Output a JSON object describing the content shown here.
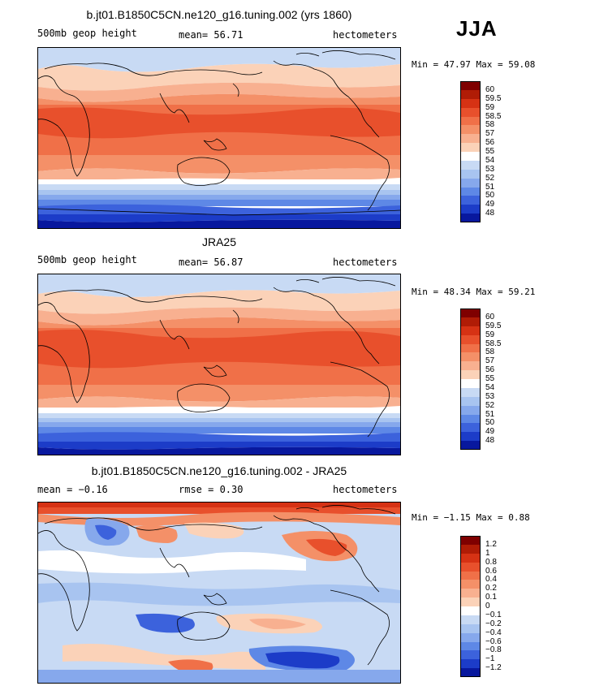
{
  "season": "JJA",
  "panels": [
    {
      "id": "model",
      "title": "b.jt01.B1850C5CN.ne120_g16.tuning.002 (yrs 1860)",
      "left_label": "500mb geop height",
      "center_label": "mean=  56.71",
      "right_label": "hectometers",
      "minmax": "Min =  47.97 Max =  59.08"
    },
    {
      "id": "obs",
      "title": "JRA25",
      "left_label": "500mb geop height",
      "center_label": "mean=  56.87",
      "right_label": "hectometers",
      "minmax": "Min =  48.34 Max =  59.21"
    },
    {
      "id": "diff",
      "title": "b.jt01.B1850C5CN.ne120_g16.tuning.002 - JRA25",
      "left_label": "mean =  −0.16",
      "center_label": "rmse =   0.30",
      "right_label": "hectometers",
      "minmax": "Min =  −1.15 Max =   0.88"
    }
  ],
  "colorbars": {
    "height": {
      "labels": [
        "60",
        "59.5",
        "59",
        "58.5",
        "58",
        "57",
        "56",
        "55",
        "54",
        "53",
        "52",
        "51",
        "50",
        "49",
        "48"
      ],
      "colors": [
        "#7f0000",
        "#b01c06",
        "#d63214",
        "#e8502c",
        "#f07048",
        "#f49068",
        "#f8b090",
        "#fbd2b8",
        "#ffffff",
        "#c8daf4",
        "#a8c4f0",
        "#86a8ec",
        "#5e88e6",
        "#3c62dc",
        "#1c3cc8",
        "#08189e"
      ]
    },
    "diff": {
      "labels": [
        "1.2",
        "1",
        "0.8",
        "0.6",
        "0.4",
        "0.2",
        "0.1",
        "0",
        "−0.1",
        "−0.2",
        "−0.4",
        "−0.6",
        "−0.8",
        "−1",
        "−1.2"
      ],
      "colors": [
        "#7f0000",
        "#b01c06",
        "#d63214",
        "#e8502c",
        "#f07048",
        "#f49068",
        "#f8b090",
        "#fbd2b8",
        "#ffffff",
        "#c8daf4",
        "#a8c4f0",
        "#86a8ec",
        "#5e88e6",
        "#3c62dc",
        "#1c3cc8",
        "#08189e"
      ]
    }
  }
}
